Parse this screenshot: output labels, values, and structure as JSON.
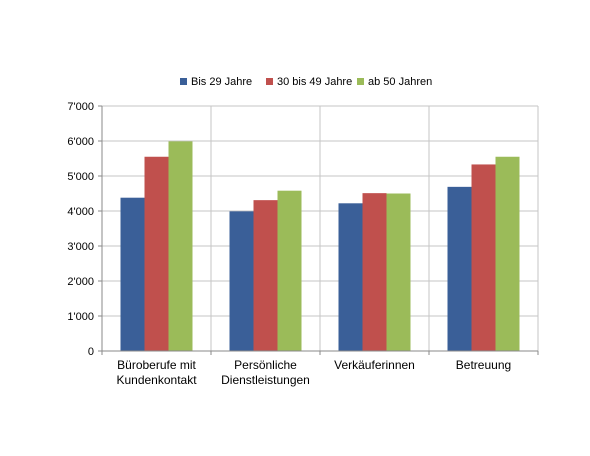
{
  "chart_data": {
    "type": "bar",
    "categories": [
      [
        "Büroberufe mit",
        "Kundenkontakt"
      ],
      [
        "Persönliche",
        "Dienstleistungen"
      ],
      [
        "Verkäuferinnen"
      ],
      [
        "Betreuung"
      ]
    ],
    "series": [
      {
        "name": "Bis 29 Jahre",
        "color": "#3A5F98",
        "values": [
          4380,
          3990,
          4220,
          4690
        ]
      },
      {
        "name": "30 bis 49 Jahre",
        "color": "#C0504D",
        "values": [
          5550,
          4310,
          4510,
          5330
        ]
      },
      {
        "name": "ab 50 Jahren",
        "color": "#9BBB59",
        "values": [
          5990,
          4580,
          4500,
          5550
        ]
      }
    ],
    "y_ticks": [
      "0",
      "1'000",
      "2'000",
      "3'000",
      "4'000",
      "5'000",
      "6'000",
      "7'000"
    ],
    "ylim": [
      0,
      7000
    ],
    "grid": true,
    "legend_position": "top"
  }
}
